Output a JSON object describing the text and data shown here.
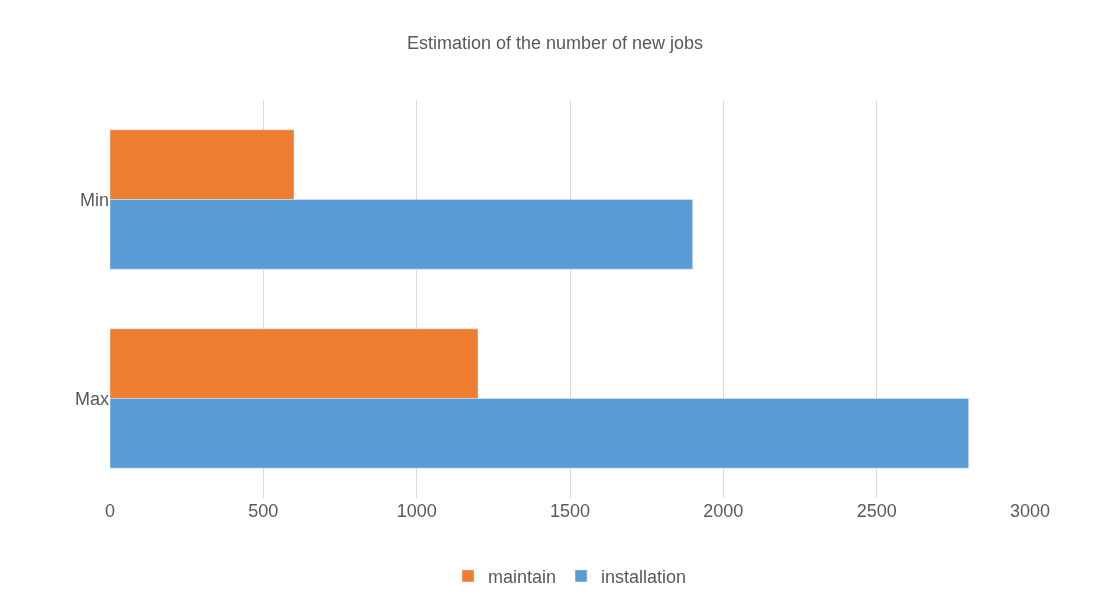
{
  "chart_data": {
    "type": "bar",
    "orientation": "horizontal",
    "title": "Estimation of the number of new jobs",
    "categories": [
      "Min",
      "Max"
    ],
    "series": [
      {
        "name": "maintain",
        "color": "#ed7d31",
        "values": [
          600,
          1200
        ]
      },
      {
        "name": "installation",
        "color": "#5b9bd5",
        "values": [
          1900,
          2800
        ]
      }
    ],
    "xlim": [
      0,
      3000
    ],
    "xticks": [
      0,
      500,
      1000,
      1500,
      2000,
      2500,
      3000
    ],
    "grid": "x",
    "legend": "bottom"
  }
}
